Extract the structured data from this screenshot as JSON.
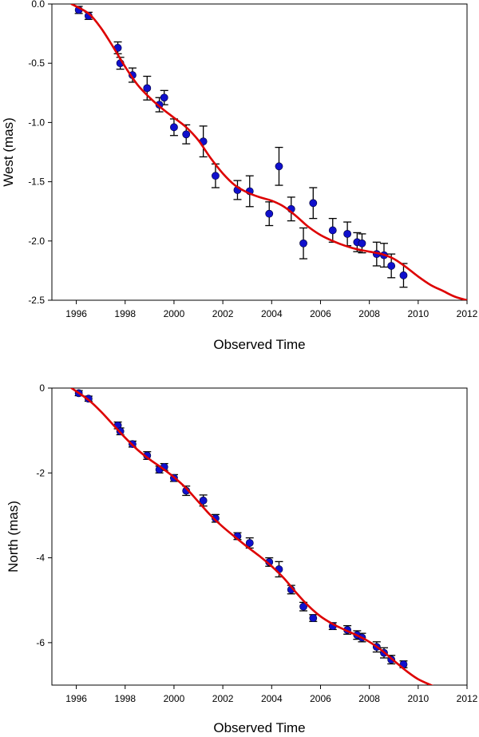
{
  "chart_data": [
    {
      "type": "scatter",
      "title": "",
      "xlabel": "Observed Time",
      "ylabel": "West (mas)",
      "xlim": [
        1995,
        2012
      ],
      "ylim": [
        -2.5,
        0.0
      ],
      "x_ticks": [
        1996,
        1998,
        2000,
        2002,
        2004,
        2006,
        2008,
        2010,
        2012
      ],
      "y_ticks": [
        0.0,
        -0.5,
        -1.0,
        -1.5,
        -2.0,
        -2.5
      ],
      "x_tick_labels": [
        "1996",
        "1998",
        "2000",
        "2002",
        "2004",
        "2006",
        "2008",
        "2010",
        "2012"
      ],
      "y_tick_labels": [
        "0.0",
        "-0.5",
        "-1.0",
        "-1.5",
        "-2.0",
        "-2.5"
      ],
      "grid": false,
      "colors": {
        "points": "#1010cc",
        "fit": "#dd0000",
        "errorbars": "#000000"
      },
      "points": [
        {
          "x": 1996.1,
          "y": -0.05,
          "err": 0.03
        },
        {
          "x": 1996.5,
          "y": -0.1,
          "err": 0.03
        },
        {
          "x": 1997.7,
          "y": -0.37,
          "err": 0.05
        },
        {
          "x": 1997.8,
          "y": -0.5,
          "err": 0.05
        },
        {
          "x": 1998.3,
          "y": -0.6,
          "err": 0.06
        },
        {
          "x": 1998.9,
          "y": -0.71,
          "err": 0.1
        },
        {
          "x": 1999.4,
          "y": -0.85,
          "err": 0.06
        },
        {
          "x": 1999.6,
          "y": -0.79,
          "err": 0.06
        },
        {
          "x": 2000.0,
          "y": -1.04,
          "err": 0.07
        },
        {
          "x": 2000.5,
          "y": -1.1,
          "err": 0.08
        },
        {
          "x": 2001.2,
          "y": -1.16,
          "err": 0.13
        },
        {
          "x": 2001.7,
          "y": -1.45,
          "err": 0.1
        },
        {
          "x": 2002.6,
          "y": -1.57,
          "err": 0.08
        },
        {
          "x": 2003.1,
          "y": -1.58,
          "err": 0.13
        },
        {
          "x": 2003.9,
          "y": -1.77,
          "err": 0.1
        },
        {
          "x": 2004.3,
          "y": -1.37,
          "err": 0.16
        },
        {
          "x": 2004.8,
          "y": -1.73,
          "err": 0.1
        },
        {
          "x": 2005.3,
          "y": -2.02,
          "err": 0.13
        },
        {
          "x": 2005.7,
          "y": -1.68,
          "err": 0.13
        },
        {
          "x": 2006.5,
          "y": -1.91,
          "err": 0.1
        },
        {
          "x": 2007.1,
          "y": -1.94,
          "err": 0.1
        },
        {
          "x": 2007.5,
          "y": -2.01,
          "err": 0.08
        },
        {
          "x": 2007.7,
          "y": -2.02,
          "err": 0.08
        },
        {
          "x": 2008.3,
          "y": -2.11,
          "err": 0.1
        },
        {
          "x": 2008.6,
          "y": -2.12,
          "err": 0.1
        },
        {
          "x": 2008.9,
          "y": -2.21,
          "err": 0.1
        },
        {
          "x": 2009.4,
          "y": -2.29,
          "err": 0.1
        }
      ],
      "fit": [
        {
          "x": 1995.8,
          "y": 0.0
        },
        {
          "x": 1996.5,
          "y": -0.08
        },
        {
          "x": 1997.0,
          "y": -0.2
        },
        {
          "x": 1997.5,
          "y": -0.36
        },
        {
          "x": 1998.0,
          "y": -0.53
        },
        {
          "x": 1998.5,
          "y": -0.68
        },
        {
          "x": 1999.0,
          "y": -0.79
        },
        {
          "x": 1999.5,
          "y": -0.88
        },
        {
          "x": 2000.0,
          "y": -0.96
        },
        {
          "x": 2000.5,
          "y": -1.04
        },
        {
          "x": 2001.0,
          "y": -1.15
        },
        {
          "x": 2001.5,
          "y": -1.3
        },
        {
          "x": 2002.0,
          "y": -1.43
        },
        {
          "x": 2002.5,
          "y": -1.53
        },
        {
          "x": 2003.0,
          "y": -1.59
        },
        {
          "x": 2003.5,
          "y": -1.63
        },
        {
          "x": 2004.0,
          "y": -1.66
        },
        {
          "x": 2004.5,
          "y": -1.71
        },
        {
          "x": 2005.0,
          "y": -1.79
        },
        {
          "x": 2005.5,
          "y": -1.88
        },
        {
          "x": 2006.0,
          "y": -1.95
        },
        {
          "x": 2006.5,
          "y": -2.0
        },
        {
          "x": 2007.0,
          "y": -2.04
        },
        {
          "x": 2007.5,
          "y": -2.07
        },
        {
          "x": 2008.0,
          "y": -2.09
        },
        {
          "x": 2008.5,
          "y": -2.11
        },
        {
          "x": 2009.0,
          "y": -2.15
        },
        {
          "x": 2009.5,
          "y": -2.22
        },
        {
          "x": 2010.0,
          "y": -2.3
        },
        {
          "x": 2010.5,
          "y": -2.37
        },
        {
          "x": 2011.0,
          "y": -2.42
        },
        {
          "x": 2011.5,
          "y": -2.47
        },
        {
          "x": 2012.0,
          "y": -2.5
        }
      ]
    },
    {
      "type": "scatter",
      "title": "",
      "xlabel": "Observed Time",
      "ylabel": "North (mas)",
      "xlim": [
        1995,
        2012
      ],
      "ylim": [
        -7,
        0
      ],
      "x_ticks": [
        1996,
        1998,
        2000,
        2002,
        2004,
        2006,
        2008,
        2010,
        2012
      ],
      "y_ticks": [
        0,
        -2,
        -4,
        -6
      ],
      "x_tick_labels": [
        "1996",
        "1998",
        "2000",
        "2002",
        "2004",
        "2006",
        "2008",
        "2010",
        "2012"
      ],
      "y_tick_labels": [
        "0",
        "-2",
        "-4",
        "-6"
      ],
      "grid": false,
      "colors": {
        "points": "#1010cc",
        "fit": "#dd0000",
        "errorbars": "#000000"
      },
      "points": [
        {
          "x": 1996.1,
          "y": -0.12,
          "err": 0.06
        },
        {
          "x": 1996.5,
          "y": -0.25,
          "err": 0.06
        },
        {
          "x": 1997.7,
          "y": -0.88,
          "err": 0.08
        },
        {
          "x": 1997.8,
          "y": -1.02,
          "err": 0.08
        },
        {
          "x": 1998.3,
          "y": -1.32,
          "err": 0.07
        },
        {
          "x": 1998.9,
          "y": -1.59,
          "err": 0.09
        },
        {
          "x": 1999.4,
          "y": -1.92,
          "err": 0.08
        },
        {
          "x": 1999.6,
          "y": -1.86,
          "err": 0.08
        },
        {
          "x": 2000.0,
          "y": -2.12,
          "err": 0.08
        },
        {
          "x": 2000.5,
          "y": -2.42,
          "err": 0.11
        },
        {
          "x": 2001.2,
          "y": -2.65,
          "err": 0.13
        },
        {
          "x": 2001.7,
          "y": -3.07,
          "err": 0.09
        },
        {
          "x": 2002.6,
          "y": -3.49,
          "err": 0.08
        },
        {
          "x": 2003.1,
          "y": -3.65,
          "err": 0.12
        },
        {
          "x": 2003.9,
          "y": -4.1,
          "err": 0.1
        },
        {
          "x": 2004.3,
          "y": -4.27,
          "err": 0.18
        },
        {
          "x": 2004.8,
          "y": -4.75,
          "err": 0.1
        },
        {
          "x": 2005.3,
          "y": -5.15,
          "err": 0.1
        },
        {
          "x": 2005.7,
          "y": -5.42,
          "err": 0.08
        },
        {
          "x": 2006.5,
          "y": -5.61,
          "err": 0.08
        },
        {
          "x": 2007.1,
          "y": -5.7,
          "err": 0.1
        },
        {
          "x": 2007.5,
          "y": -5.82,
          "err": 0.1
        },
        {
          "x": 2007.7,
          "y": -5.88,
          "err": 0.1
        },
        {
          "x": 2008.3,
          "y": -6.1,
          "err": 0.12
        },
        {
          "x": 2008.6,
          "y": -6.24,
          "err": 0.12
        },
        {
          "x": 2008.9,
          "y": -6.4,
          "err": 0.1
        },
        {
          "x": 2009.4,
          "y": -6.51,
          "err": 0.08
        }
      ],
      "fit": [
        {
          "x": 1995.8,
          "y": 0.0
        },
        {
          "x": 1996.5,
          "y": -0.28
        },
        {
          "x": 1997.0,
          "y": -0.55
        },
        {
          "x": 1997.5,
          "y": -0.86
        },
        {
          "x": 1998.0,
          "y": -1.17
        },
        {
          "x": 1998.5,
          "y": -1.45
        },
        {
          "x": 1999.0,
          "y": -1.68
        },
        {
          "x": 1999.5,
          "y": -1.88
        },
        {
          "x": 2000.0,
          "y": -2.1
        },
        {
          "x": 2000.5,
          "y": -2.36
        },
        {
          "x": 2001.0,
          "y": -2.68
        },
        {
          "x": 2001.5,
          "y": -3.0
        },
        {
          "x": 2002.0,
          "y": -3.27
        },
        {
          "x": 2002.5,
          "y": -3.51
        },
        {
          "x": 2003.0,
          "y": -3.74
        },
        {
          "x": 2003.5,
          "y": -3.96
        },
        {
          "x": 2004.0,
          "y": -4.2
        },
        {
          "x": 2004.5,
          "y": -4.48
        },
        {
          "x": 2005.0,
          "y": -4.82
        },
        {
          "x": 2005.5,
          "y": -5.13
        },
        {
          "x": 2006.0,
          "y": -5.38
        },
        {
          "x": 2006.5,
          "y": -5.56
        },
        {
          "x": 2007.0,
          "y": -5.7
        },
        {
          "x": 2007.5,
          "y": -5.83
        },
        {
          "x": 2008.0,
          "y": -5.98
        },
        {
          "x": 2008.5,
          "y": -6.18
        },
        {
          "x": 2009.0,
          "y": -6.42
        },
        {
          "x": 2009.5,
          "y": -6.66
        },
        {
          "x": 2010.0,
          "y": -6.86
        },
        {
          "x": 2010.6,
          "y": -7.02
        }
      ]
    }
  ]
}
